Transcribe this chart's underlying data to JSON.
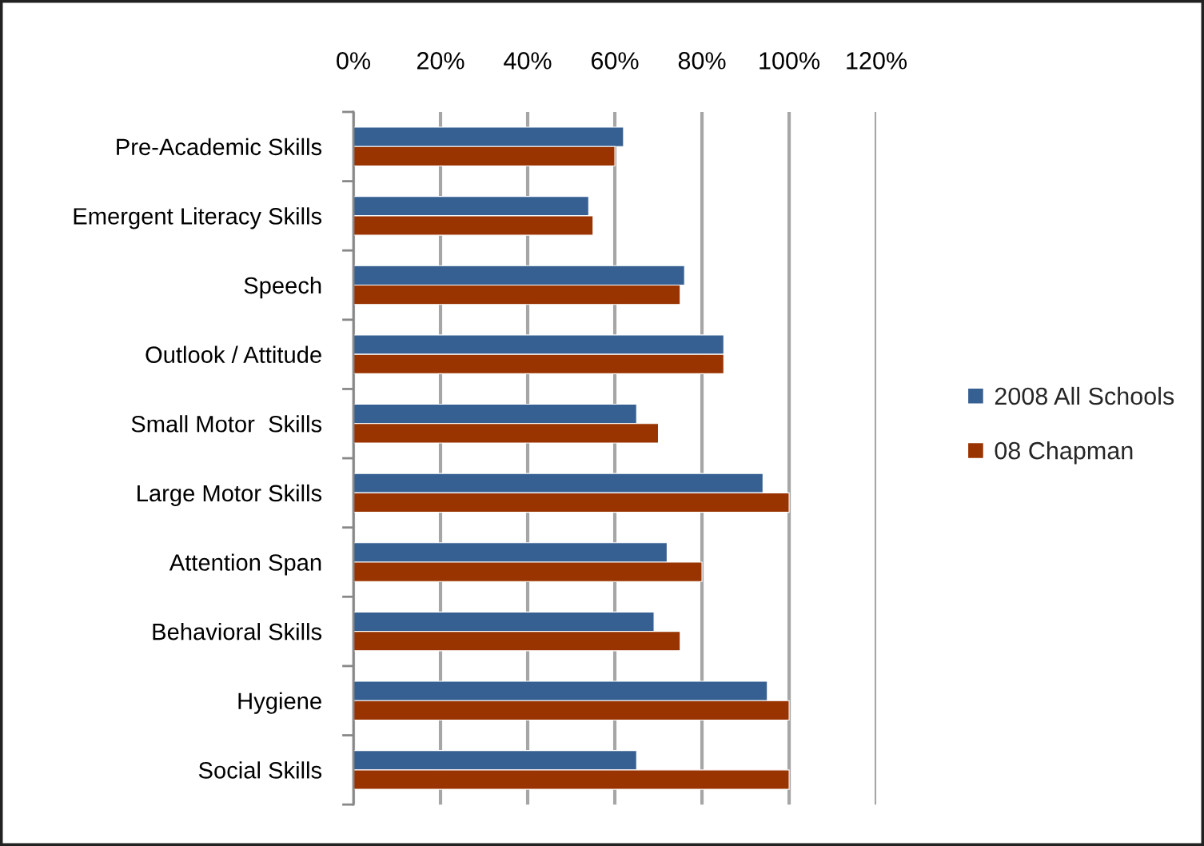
{
  "chart_data": {
    "type": "bar",
    "orientation": "horizontal",
    "categories": [
      "Pre-Academic Skills",
      "Emergent Literacy Skills",
      "Speech",
      "Outlook / Attitude",
      "Small Motor  Skills",
      "Large Motor Skills",
      "Attention Span",
      "Behavioral Skills",
      "Hygiene",
      "Social Skills"
    ],
    "series": [
      {
        "name": "2008 All Schools",
        "color": "#376092",
        "values": [
          62,
          54,
          76,
          85,
          65,
          94,
          72,
          69,
          95,
          65
        ]
      },
      {
        "name": "08 Chapman",
        "color": "#993300",
        "values": [
          60,
          55,
          75,
          85,
          70,
          100,
          80,
          75,
          100,
          100
        ]
      }
    ],
    "xlim": [
      0,
      120
    ],
    "xticks": [
      {
        "value": 0,
        "label": "0%"
      },
      {
        "value": 20,
        "label": "20%"
      },
      {
        "value": 40,
        "label": "40%"
      },
      {
        "value": 60,
        "label": "60%"
      },
      {
        "value": 80,
        "label": "80%"
      },
      {
        "value": 100,
        "label": "100%"
      },
      {
        "value": 120,
        "label": "120%"
      }
    ],
    "grid": "x",
    "legend": "right"
  }
}
